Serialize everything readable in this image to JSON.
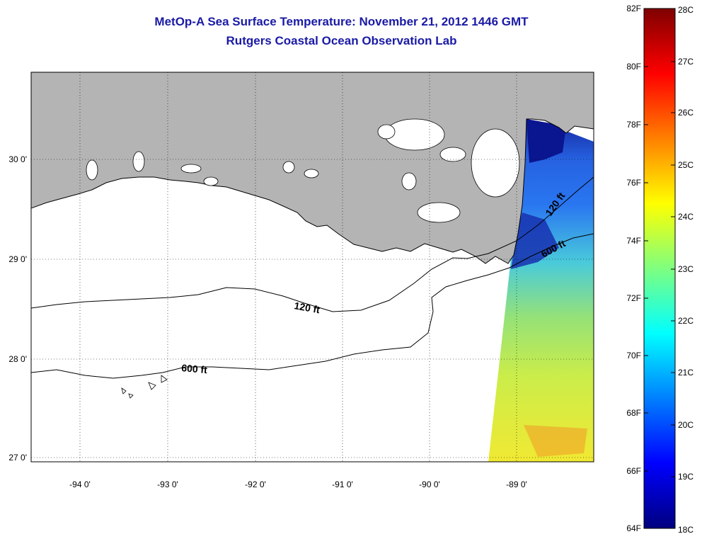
{
  "title": {
    "line1": "MetOp-A Sea Surface Temperature:  November 21, 2012 1446 GMT",
    "line2": "Rutgers Coastal Ocean Observation Lab"
  },
  "map": {
    "lat_labels": [
      "30 0'",
      "29 0'",
      "28 0'",
      "27 0'"
    ],
    "lon_labels": [
      "-94 0'",
      "-93 0'",
      "-92 0'",
      "-91 0'",
      "-90 0'",
      "-89 0'"
    ],
    "contour_labels": [
      "120 ft",
      "600 ft",
      "120 ft",
      "600 ft"
    ],
    "land_color": "#b4b4b4",
    "water_color": "#ffffff"
  },
  "colorbar": {
    "fahrenheit_labels": [
      "82F",
      "80F",
      "78F",
      "76F",
      "74F",
      "72F",
      "70F",
      "68F",
      "66F",
      "64F"
    ],
    "celsius_labels": [
      "28C",
      "27C",
      "26C",
      "25C",
      "24C",
      "23C",
      "22C",
      "21C",
      "20C",
      "19C",
      "18C"
    ],
    "colors": [
      "#00007f",
      "#0000ff",
      "#007fff",
      "#00ffff",
      "#7fff7f",
      "#ffff00",
      "#ff7f00",
      "#ff0000",
      "#7f0000"
    ]
  }
}
